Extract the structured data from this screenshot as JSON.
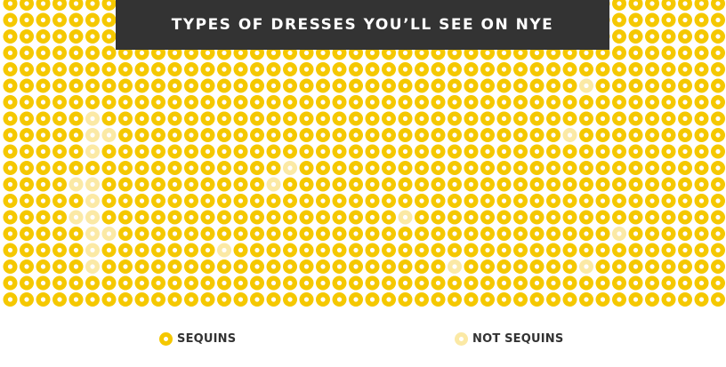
{
  "chart_data": {
    "type": "waffle",
    "title": "TYPES OF DRESSES YOU’LL SEE ON NYE",
    "grid": {
      "columns": 44,
      "rows": 19
    },
    "categories": [
      {
        "name": "SEQUINS",
        "color": "#f5c800"
      },
      {
        "name": "NOT SEQUINS",
        "color": "#fbe9a5"
      }
    ],
    "not_sequins_cells": [
      [
        35,
        5
      ],
      [
        5,
        7
      ],
      [
        5,
        8
      ],
      [
        6,
        8
      ],
      [
        34,
        8
      ],
      [
        5,
        9
      ],
      [
        17,
        10
      ],
      [
        4,
        11
      ],
      [
        5,
        11
      ],
      [
        16,
        11
      ],
      [
        5,
        12
      ],
      [
        4,
        13
      ],
      [
        5,
        13
      ],
      [
        24,
        13
      ],
      [
        5,
        14
      ],
      [
        6,
        14
      ],
      [
        37,
        14
      ],
      [
        5,
        15
      ],
      [
        13,
        15
      ],
      [
        5,
        16
      ],
      [
        27,
        16
      ],
      [
        35,
        16
      ]
    ]
  },
  "legend": {
    "sequins_label": "SEQUINS",
    "not_sequins_label": "NOT SEQUINS"
  }
}
